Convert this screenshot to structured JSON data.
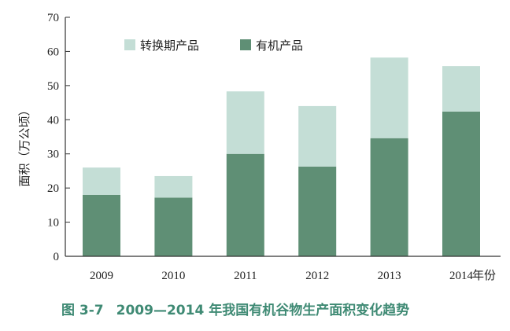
{
  "chart_data": {
    "type": "bar",
    "stacked": true,
    "categories": [
      "2009",
      "2010",
      "2011",
      "2012",
      "2013",
      "2014"
    ],
    "series": [
      {
        "name": "有机产品",
        "values": [
          18,
          17.2,
          30,
          26.3,
          34.6,
          42.4
        ],
        "color": "#5f8f75"
      },
      {
        "name": "转换期产品",
        "values": [
          8,
          6.3,
          18.3,
          17.7,
          23.6,
          13.3
        ],
        "color": "#c4ded6"
      }
    ],
    "legend_order": [
      "转换期产品",
      "有机产品"
    ],
    "xlabel": "年份",
    "ylabel": "面积（万公顷）",
    "ylim": [
      0,
      70
    ],
    "yticks": [
      0,
      10,
      20,
      30,
      40,
      50,
      60,
      70
    ],
    "grid": false,
    "legend_position": "top-left"
  },
  "caption": {
    "number": "图 3-7",
    "text": "2009—2014 年我国有机谷物生产面积变化趋势"
  }
}
